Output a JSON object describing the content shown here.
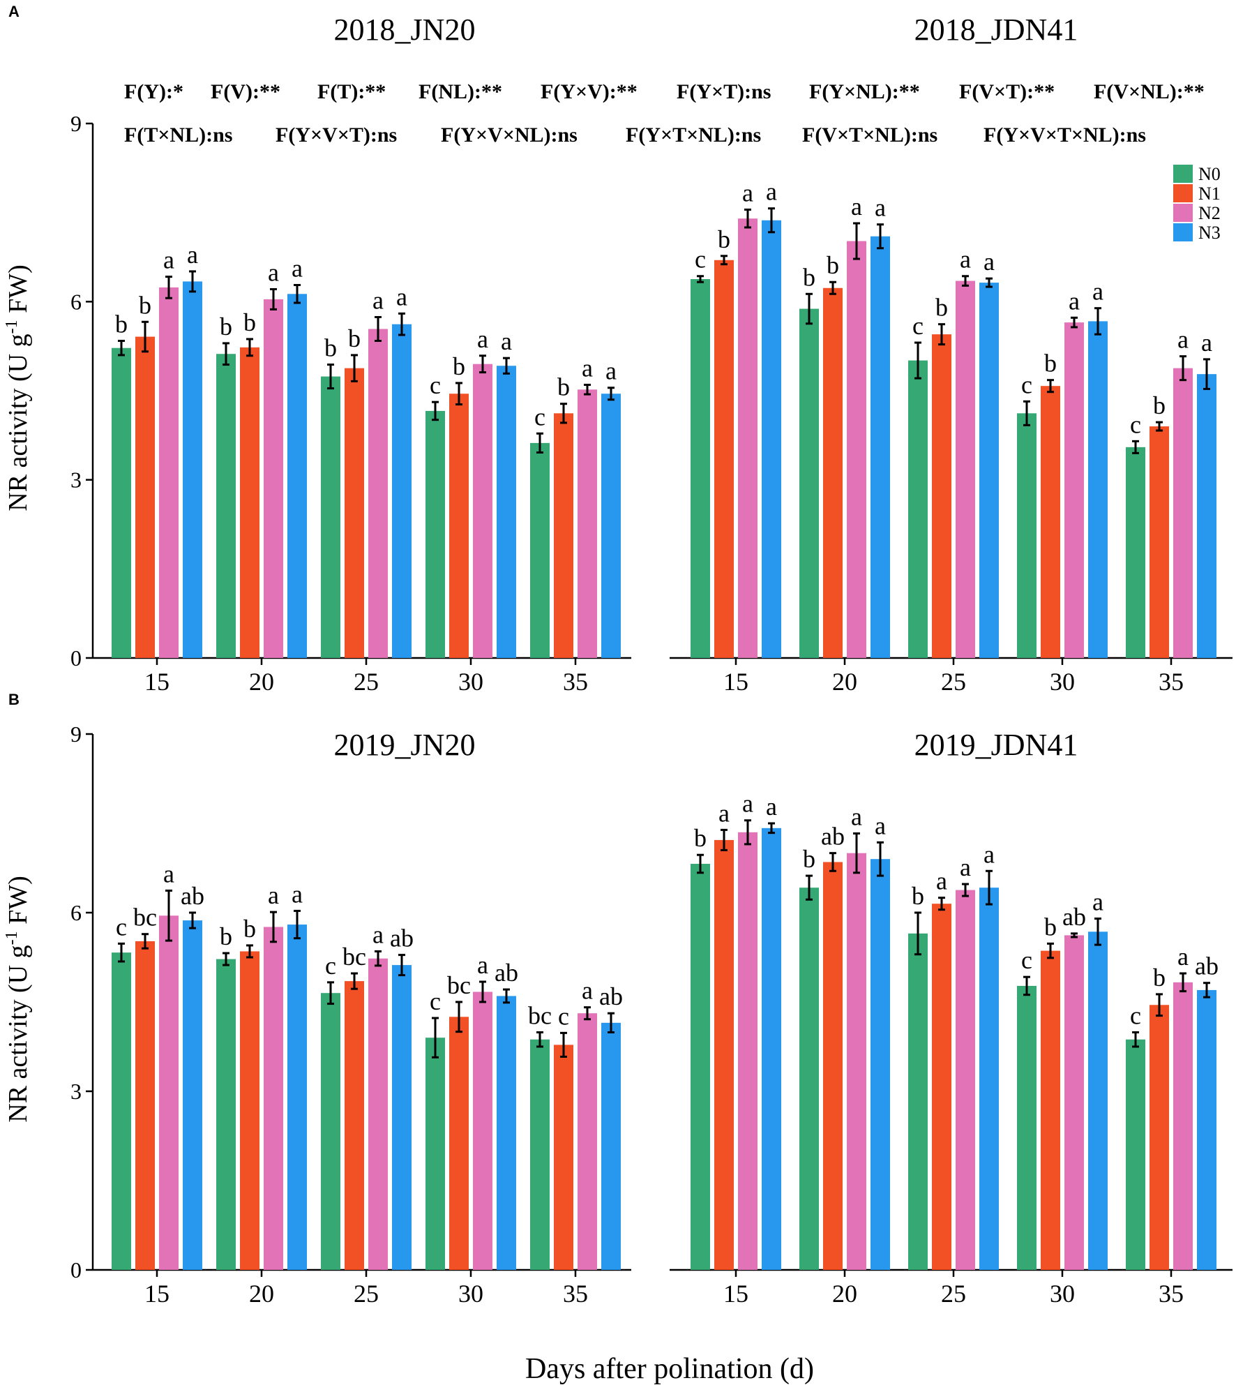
{
  "figure": {
    "panel_letters": [
      "A",
      "B"
    ],
    "xlabel": "Days after polination (d)",
    "ylabel": "NR activity (U g",
    "ylabel_sup": "-1",
    "ylabel_end": " FW)",
    "stats_row1": [
      "F(Y):*",
      "F(V):**",
      "F(T):**",
      "F(NL):**",
      "F(Y×V):**",
      "F(Y×T):ns",
      "F(Y×NL):**",
      "F(V×T):**",
      "F(V×NL):**"
    ],
    "stats_row2": [
      "F(T×NL):ns",
      "F(Y×V×T):ns",
      "F(Y×V×NL):ns",
      "F(Y×T×NL):ns",
      "F(V×T×NL):ns",
      "F(Y×V×T×NL):ns"
    ]
  },
  "legend": {
    "entries": [
      {
        "name": "N0",
        "color": "#36a874"
      },
      {
        "name": "N1",
        "color": "#f15125"
      },
      {
        "name": "N2",
        "color": "#e273b6"
      },
      {
        "name": "N3",
        "color": "#2898ee"
      }
    ]
  },
  "chart_data": [
    {
      "type": "bar",
      "title": "2018_JN20",
      "categories": [
        "15",
        "20",
        "25",
        "30",
        "35"
      ],
      "ylim": [
        0,
        9
      ],
      "yticks": [
        "0",
        "3",
        "6",
        "9"
      ],
      "series": [
        {
          "name": "N0",
          "values": [
            5.22,
            5.12,
            4.74,
            4.16,
            3.62
          ],
          "errors": [
            0.12,
            0.18,
            0.2,
            0.15,
            0.16
          ],
          "letters": [
            "b",
            "b",
            "b",
            "c",
            "c"
          ]
        },
        {
          "name": "N1",
          "values": [
            5.41,
            5.23,
            4.88,
            4.45,
            4.12
          ],
          "errors": [
            0.25,
            0.14,
            0.22,
            0.18,
            0.16
          ],
          "letters": [
            "b",
            "b",
            "b",
            "b",
            "b"
          ]
        },
        {
          "name": "N2",
          "values": [
            6.24,
            6.04,
            5.54,
            4.95,
            4.52
          ],
          "errors": [
            0.18,
            0.17,
            0.2,
            0.14,
            0.08
          ],
          "letters": [
            "a",
            "a",
            "a",
            "a",
            "a"
          ]
        },
        {
          "name": "N3",
          "values": [
            6.34,
            6.13,
            5.62,
            4.92,
            4.45
          ],
          "errors": [
            0.17,
            0.15,
            0.18,
            0.13,
            0.1
          ],
          "letters": [
            "a",
            "a",
            "a",
            "a",
            "a"
          ]
        }
      ]
    },
    {
      "type": "bar",
      "title": "2018_JDN41",
      "categories": [
        "15",
        "20",
        "25",
        "30",
        "35"
      ],
      "ylim": [
        0,
        9
      ],
      "yticks": [
        "0",
        "3",
        "6",
        "9"
      ],
      "series": [
        {
          "name": "N0",
          "values": [
            6.38,
            5.88,
            5.01,
            4.12,
            3.55
          ],
          "errors": [
            0.05,
            0.25,
            0.3,
            0.2,
            0.1
          ],
          "letters": [
            "c",
            "b",
            "c",
            "c",
            "c"
          ]
        },
        {
          "name": "N1",
          "values": [
            6.7,
            6.23,
            5.45,
            4.58,
            3.9
          ],
          "errors": [
            0.07,
            0.1,
            0.17,
            0.1,
            0.07
          ],
          "letters": [
            "b",
            "b",
            "b",
            "b",
            "b"
          ]
        },
        {
          "name": "N2",
          "values": [
            7.4,
            7.02,
            6.35,
            5.65,
            4.88
          ],
          "errors": [
            0.15,
            0.3,
            0.08,
            0.08,
            0.2
          ],
          "letters": [
            "a",
            "a",
            "a",
            "a",
            "a"
          ]
        },
        {
          "name": "N3",
          "values": [
            7.37,
            7.1,
            6.32,
            5.67,
            4.78
          ],
          "errors": [
            0.2,
            0.2,
            0.07,
            0.22,
            0.25
          ],
          "letters": [
            "a",
            "a",
            "a",
            "a",
            "a"
          ]
        }
      ]
    },
    {
      "type": "bar",
      "title": "2019_JN20",
      "categories": [
        "15",
        "20",
        "25",
        "30",
        "35"
      ],
      "ylim": [
        0,
        9
      ],
      "yticks": [
        "0",
        "3",
        "6",
        "9"
      ],
      "series": [
        {
          "name": "N0",
          "values": [
            5.33,
            5.22,
            4.65,
            3.9,
            3.87
          ],
          "errors": [
            0.15,
            0.1,
            0.18,
            0.33,
            0.12
          ],
          "letters": [
            "c",
            "b",
            "c",
            "c",
            "bc"
          ]
        },
        {
          "name": "N1",
          "values": [
            5.52,
            5.35,
            4.85,
            4.25,
            3.78
          ],
          "errors": [
            0.12,
            0.1,
            0.13,
            0.25,
            0.2
          ],
          "letters": [
            "bc",
            "b",
            "bc",
            "bc",
            "c"
          ]
        },
        {
          "name": "N2",
          "values": [
            5.95,
            5.76,
            5.23,
            4.67,
            4.31
          ],
          "errors": [
            0.42,
            0.25,
            0.12,
            0.17,
            0.1
          ],
          "letters": [
            "a",
            "a",
            "a",
            "a",
            "a"
          ]
        },
        {
          "name": "N3",
          "values": [
            5.87,
            5.8,
            5.12,
            4.6,
            4.15
          ],
          "errors": [
            0.13,
            0.23,
            0.17,
            0.11,
            0.16
          ],
          "letters": [
            "ab",
            "a",
            "ab",
            "ab",
            "ab"
          ]
        }
      ]
    },
    {
      "type": "bar",
      "title": "2019_JDN41",
      "categories": [
        "15",
        "20",
        "25",
        "30",
        "35"
      ],
      "ylim": [
        0,
        9
      ],
      "yticks": [
        "0",
        "3",
        "6",
        "9"
      ],
      "series": [
        {
          "name": "N0",
          "values": [
            6.82,
            6.42,
            5.65,
            4.77,
            3.87
          ],
          "errors": [
            0.15,
            0.2,
            0.35,
            0.15,
            0.12
          ],
          "letters": [
            "b",
            "b",
            "b",
            "c",
            "c"
          ]
        },
        {
          "name": "N1",
          "values": [
            7.22,
            6.85,
            6.15,
            5.36,
            4.45
          ],
          "errors": [
            0.17,
            0.15,
            0.1,
            0.12,
            0.18
          ],
          "letters": [
            "a",
            "ab",
            "a",
            "b",
            "b"
          ]
        },
        {
          "name": "N2",
          "values": [
            7.35,
            7.0,
            6.38,
            5.62,
            4.83
          ],
          "errors": [
            0.2,
            0.33,
            0.1,
            0.03,
            0.15
          ],
          "letters": [
            "a",
            "a",
            "a",
            "ab",
            "a"
          ]
        },
        {
          "name": "N3",
          "values": [
            7.42,
            6.9,
            6.42,
            5.68,
            4.7
          ],
          "errors": [
            0.08,
            0.28,
            0.28,
            0.22,
            0.12
          ],
          "letters": [
            "a",
            "a",
            "a",
            "a",
            "ab"
          ]
        }
      ]
    }
  ]
}
